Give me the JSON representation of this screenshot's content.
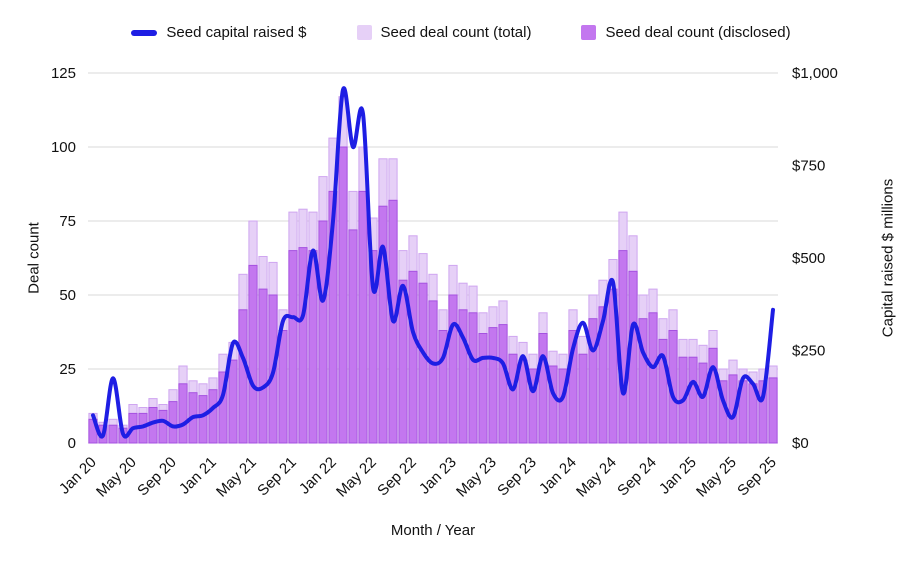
{
  "legend": {
    "items": [
      {
        "label": "Seed capital raised $",
        "type": "line",
        "color": "#1e1ee4"
      },
      {
        "label": "Seed deal count (total)",
        "type": "box",
        "color": "#e6d0f7"
      },
      {
        "label": "Seed deal count (disclosed)",
        "type": "box",
        "color": "#c377ef"
      }
    ]
  },
  "chart_data": {
    "type": "combo bar+line",
    "title": "",
    "xlabel": "Month / Year",
    "background": "#ffffff",
    "grid_color": "#d9d9d9",
    "x_tick_every": 4,
    "months": [
      "Jan 20",
      "Feb 20",
      "Mar 20",
      "Apr 20",
      "May 20",
      "Jun 20",
      "Jul 20",
      "Aug 20",
      "Sep 20",
      "Oct 20",
      "Nov 20",
      "Dec 20",
      "Jan 21",
      "Feb 21",
      "Mar 21",
      "Apr 21",
      "May 21",
      "Jun 21",
      "Jul 21",
      "Aug 21",
      "Sep 21",
      "Oct 21",
      "Nov 21",
      "Dec 21",
      "Jan 22",
      "Feb 22",
      "Mar 22",
      "Apr 22",
      "May 22",
      "Jun 22",
      "Jul 22",
      "Aug 22",
      "Sep 22",
      "Oct 22",
      "Nov 22",
      "Dec 22",
      "Jan 23",
      "Feb 23",
      "Mar 23",
      "Apr 23",
      "May 23",
      "Jun 23",
      "Jul 23",
      "Aug 23",
      "Sep 23",
      "Oct 23",
      "Nov 23",
      "Dec 23",
      "Jan 24",
      "Feb 24",
      "Mar 24",
      "Apr 24",
      "May 24",
      "Jun 24",
      "Jul 24",
      "Aug 24",
      "Sep 24",
      "Oct 24",
      "Nov 24",
      "Dec 24",
      "Jan 25",
      "Feb 25",
      "Mar 25",
      "Apr 25",
      "May 25",
      "Jun 25",
      "Jul 25",
      "Aug 25",
      "Sep 25"
    ],
    "left_axis": {
      "label": "Deal count",
      "max": 125,
      "ticks": [
        {
          "value": 0,
          "label": "0"
        },
        {
          "value": 25,
          "label": "25"
        },
        {
          "value": 50,
          "label": "50"
        },
        {
          "value": 75,
          "label": "75"
        },
        {
          "value": 100,
          "label": "100"
        },
        {
          "value": 125,
          "label": "125"
        }
      ]
    },
    "right_axis": {
      "label": "Capital raised $ millions",
      "max": 1000,
      "ticks": [
        {
          "value": 0,
          "label": "$0"
        },
        {
          "value": 250,
          "label": "$250"
        },
        {
          "value": 500,
          "label": "$500"
        },
        {
          "value": 750,
          "label": "$750"
        },
        {
          "value": 1000,
          "label": "$1,000"
        }
      ]
    },
    "series": [
      {
        "name": "Seed deal count (total)",
        "type": "bar",
        "axis": "left",
        "color": "#e6d0f7",
        "stroke": "#cfa6f0",
        "values": [
          10,
          7,
          8,
          6,
          13,
          12,
          15,
          13,
          18,
          26,
          21,
          20,
          22,
          30,
          34,
          57,
          75,
          63,
          61,
          45,
          78,
          79,
          78,
          90,
          103,
          117,
          85,
          100,
          76,
          96,
          96,
          65,
          70,
          64,
          57,
          45,
          60,
          54,
          53,
          44,
          46,
          48,
          36,
          34,
          30,
          44,
          31,
          30,
          45,
          36,
          50,
          55,
          62,
          78,
          70,
          50,
          52,
          42,
          45,
          35,
          35,
          33,
          38,
          25,
          28,
          25,
          24,
          25,
          26
        ]
      },
      {
        "name": "Seed deal count (disclosed)",
        "type": "bar",
        "axis": "left",
        "color": "#c377ef",
        "stroke": "#a551e0",
        "values": [
          8,
          6,
          6,
          5,
          10,
          10,
          12,
          11,
          14,
          20,
          17,
          16,
          18,
          24,
          28,
          45,
          60,
          52,
          50,
          38,
          65,
          66,
          65,
          75,
          85,
          100,
          72,
          85,
          65,
          80,
          82,
          55,
          58,
          54,
          48,
          38,
          50,
          45,
          44,
          37,
          39,
          40,
          30,
          28,
          25,
          37,
          26,
          25,
          38,
          30,
          42,
          46,
          52,
          65,
          58,
          42,
          44,
          35,
          38,
          29,
          29,
          27,
          32,
          21,
          23,
          21,
          20,
          21,
          22
        ]
      },
      {
        "name": "Seed capital raised $",
        "type": "line",
        "axis": "right",
        "color": "#1e1ee4",
        "values": [
          75,
          20,
          175,
          25,
          40,
          45,
          55,
          60,
          45,
          50,
          70,
          75,
          95,
          130,
          270,
          230,
          155,
          150,
          190,
          330,
          340,
          345,
          520,
          385,
          600,
          955,
          800,
          890,
          420,
          530,
          330,
          425,
          300,
          245,
          215,
          230,
          320,
          285,
          225,
          230,
          230,
          215,
          145,
          235,
          140,
          235,
          135,
          125,
          255,
          325,
          250,
          330,
          435,
          135,
          320,
          245,
          205,
          235,
          125,
          115,
          165,
          125,
          205,
          115,
          70,
          175,
          160,
          125,
          360
        ]
      }
    ]
  }
}
